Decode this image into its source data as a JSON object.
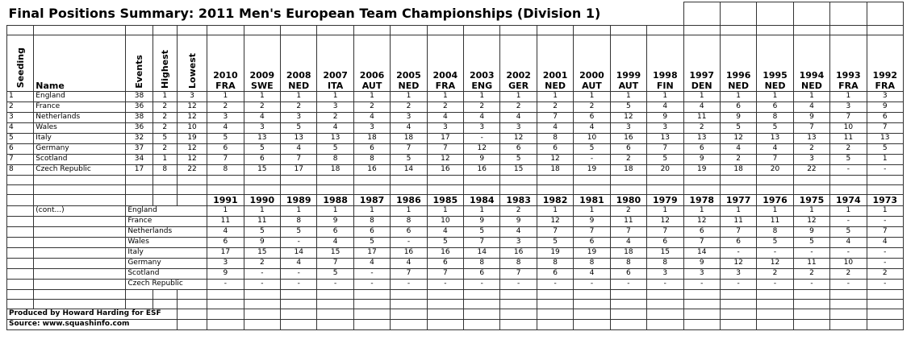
{
  "title": "Final Positions Summary:  2011 Men's European Team Championships (Division 1)",
  "header": {
    "seeding": "Seeding",
    "name": "Name",
    "events": "Events",
    "highest": "Highest",
    "lowest": "Lowest"
  },
  "years1": [
    {
      "year": 2010,
      "host": "FRA"
    },
    {
      "year": 2009,
      "host": "SWE"
    },
    {
      "year": 2008,
      "host": "NED"
    },
    {
      "year": 2007,
      "host": "ITA"
    },
    {
      "year": 2006,
      "host": "AUT"
    },
    {
      "year": 2005,
      "host": "NED"
    },
    {
      "year": 2004,
      "host": "FRA"
    },
    {
      "year": 2003,
      "host": "ENG"
    },
    {
      "year": 2002,
      "host": "GER"
    },
    {
      "year": 2001,
      "host": "NED"
    },
    {
      "year": 2000,
      "host": "AUT"
    },
    {
      "year": 1999,
      "host": "AUT"
    },
    {
      "year": 1998,
      "host": "FIN"
    },
    {
      "year": 1997,
      "host": "DEN"
    },
    {
      "year": 1996,
      "host": "NED"
    },
    {
      "year": 1995,
      "host": "NED"
    },
    {
      "year": 1994,
      "host": "NED"
    },
    {
      "year": 1993,
      "host": "FRA"
    },
    {
      "year": 1992,
      "host": "FRA"
    }
  ],
  "rows": [
    {
      "seeding": 1,
      "name": "England",
      "events": 38,
      "highest": 1,
      "lowest": 3,
      "results": [
        1,
        1,
        1,
        1,
        1,
        1,
        1,
        1,
        1,
        1,
        1,
        1,
        1,
        1,
        1,
        1,
        1,
        1,
        3
      ]
    },
    {
      "seeding": 2,
      "name": "France",
      "events": 36,
      "highest": 2,
      "lowest": 12,
      "results": [
        2,
        2,
        2,
        3,
        2,
        2,
        2,
        2,
        2,
        2,
        2,
        5,
        4,
        4,
        6,
        6,
        4,
        3,
        9
      ]
    },
    {
      "seeding": 3,
      "name": "Netherlands",
      "events": 38,
      "highest": 2,
      "lowest": 12,
      "results": [
        3,
        4,
        3,
        2,
        4,
        3,
        4,
        4,
        4,
        7,
        6,
        12,
        9,
        11,
        9,
        8,
        9,
        7,
        6
      ]
    },
    {
      "seeding": 4,
      "name": "Wales",
      "events": 36,
      "highest": 2,
      "lowest": 10,
      "results": [
        4,
        3,
        5,
        4,
        3,
        4,
        3,
        3,
        3,
        4,
        4,
        3,
        3,
        2,
        5,
        5,
        7,
        10,
        7
      ]
    },
    {
      "seeding": 5,
      "name": "Italy",
      "events": 32,
      "highest": 5,
      "lowest": 19,
      "results": [
        5,
        13,
        13,
        13,
        18,
        18,
        17,
        "-",
        12,
        8,
        10,
        16,
        13,
        13,
        12,
        13,
        13,
        11,
        13
      ]
    },
    {
      "seeding": 6,
      "name": "Germany",
      "events": 37,
      "highest": 2,
      "lowest": 12,
      "results": [
        6,
        5,
        4,
        5,
        6,
        7,
        7,
        12,
        6,
        6,
        5,
        6,
        7,
        6,
        4,
        4,
        2,
        2,
        5
      ]
    },
    {
      "seeding": 7,
      "name": "Scotland",
      "events": 34,
      "highest": 1,
      "lowest": 12,
      "results": [
        7,
        6,
        7,
        8,
        8,
        5,
        12,
        9,
        5,
        12,
        "-",
        2,
        5,
        9,
        2,
        7,
        3,
        5,
        1
      ]
    },
    {
      "seeding": 8,
      "name": "Czech Republic",
      "events": 17,
      "highest": 8,
      "lowest": 22,
      "results": [
        8,
        15,
        17,
        18,
        16,
        14,
        16,
        16,
        15,
        18,
        19,
        18,
        20,
        19,
        18,
        20,
        22,
        "-",
        "-"
      ]
    }
  ],
  "cont_label": "(cont...)",
  "years2": [
    1991,
    1990,
    1989,
    1988,
    1987,
    1986,
    1985,
    1984,
    1983,
    1982,
    1981,
    1980,
    1979,
    1978,
    1977,
    1976,
    1975,
    1974,
    1973
  ],
  "rows2": [
    {
      "name": "England",
      "results": [
        1,
        1,
        1,
        1,
        1,
        1,
        1,
        1,
        2,
        1,
        1,
        2,
        1,
        1,
        1,
        1,
        1,
        1,
        1
      ]
    },
    {
      "name": "France",
      "results": [
        11,
        11,
        8,
        9,
        8,
        8,
        10,
        9,
        9,
        12,
        9,
        11,
        12,
        12,
        11,
        11,
        12,
        "-",
        "-"
      ]
    },
    {
      "name": "Netherlands",
      "results": [
        4,
        5,
        5,
        6,
        6,
        6,
        4,
        5,
        4,
        7,
        7,
        7,
        7,
        6,
        7,
        8,
        9,
        5,
        7
      ]
    },
    {
      "name": "Wales",
      "results": [
        6,
        9,
        "-",
        4,
        5,
        "-",
        5,
        7,
        3,
        5,
        6,
        4,
        6,
        7,
        6,
        5,
        5,
        4,
        4
      ]
    },
    {
      "name": "Italy",
      "results": [
        17,
        15,
        14,
        15,
        17,
        16,
        16,
        14,
        16,
        19,
        19,
        18,
        15,
        14,
        "-",
        "-",
        "-",
        "-",
        "-"
      ]
    },
    {
      "name": "Germany",
      "results": [
        3,
        2,
        4,
        7,
        4,
        4,
        6,
        8,
        8,
        8,
        8,
        8,
        8,
        9,
        12,
        12,
        11,
        10,
        "-"
      ]
    },
    {
      "name": "Scotland",
      "results": [
        9,
        "-",
        "-",
        5,
        "-",
        7,
        7,
        6,
        7,
        6,
        4,
        6,
        3,
        3,
        3,
        2,
        2,
        2,
        2
      ]
    },
    {
      "name": "Czech Republic",
      "results": [
        "-",
        "-",
        "-",
        "-",
        "-",
        "-",
        "-",
        "-",
        "-",
        "-",
        "-",
        "-",
        "-",
        "-",
        "-",
        "-",
        "-",
        "-",
        "-"
      ]
    }
  ],
  "footer": [
    "Produced by Howard Harding for ESF",
    "Source: www.squashinfo.com"
  ]
}
